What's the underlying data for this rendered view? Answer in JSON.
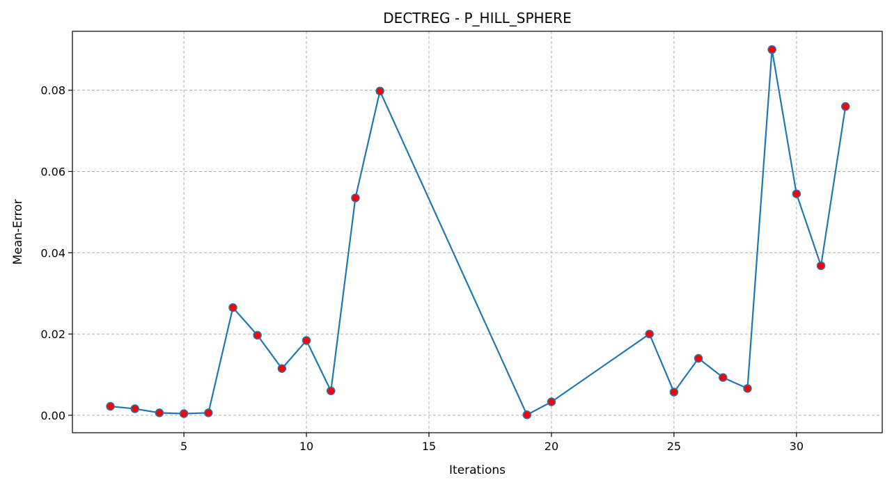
{
  "chart_data": {
    "type": "line",
    "title": "DECTREG - P_HILL_SPHERE",
    "xlabel": "Iterations",
    "ylabel": "Mean-Error",
    "xlim": [
      0.45,
      33.5
    ],
    "ylim": [
      -0.0043,
      0.0945
    ],
    "x_ticks": [
      5,
      10,
      15,
      20,
      25,
      30
    ],
    "y_ticks": [
      0.0,
      0.02,
      0.04,
      0.06,
      0.08
    ],
    "y_tick_labels": [
      "0.00",
      "0.02",
      "0.04",
      "0.06",
      "0.08"
    ],
    "grid": true,
    "series": [
      {
        "line_color": "#1f77b4",
        "marker_face": "#ff0000",
        "marker_edge": "#1f77b4",
        "x": [
          2,
          3,
          4,
          5,
          6,
          7,
          8,
          9,
          10,
          11,
          12,
          13,
          19,
          20,
          24,
          25,
          26,
          27,
          28,
          29,
          30,
          31,
          32
        ],
        "y": [
          0.0022,
          0.0016,
          0.0006,
          0.0004,
          0.0006,
          0.0265,
          0.0197,
          0.0115,
          0.0184,
          0.006,
          0.0535,
          0.0798,
          0.0001,
          0.0033,
          0.02,
          0.0057,
          0.014,
          0.0093,
          0.0066,
          0.09,
          0.0545,
          0.0368,
          0.076
        ]
      }
    ]
  }
}
